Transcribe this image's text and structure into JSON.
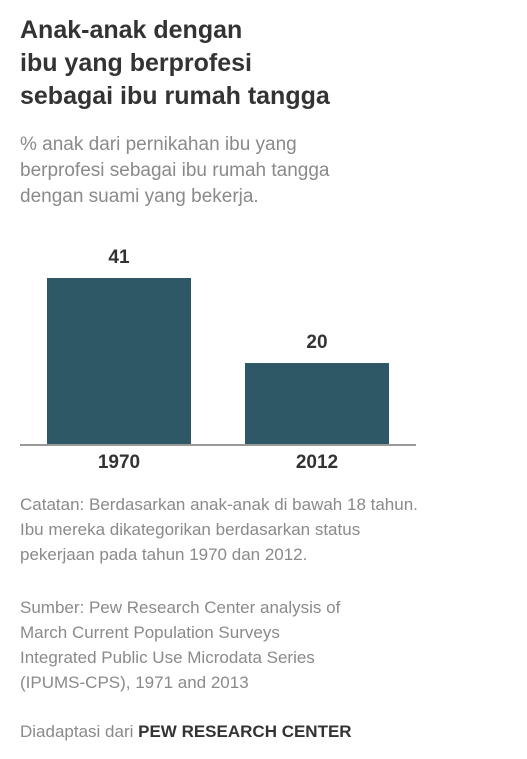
{
  "title": "Anak-anak dengan\nibu yang berprofesi\nsebagai ibu rumah tangga",
  "subtitle": "% anak dari pernikahan ibu yang\nberprofesi sebagai ibu rumah tangga\ndengan suami yang bekerja.",
  "chart_data": {
    "type": "bar",
    "categories": [
      "1970",
      "2012"
    ],
    "values": [
      41,
      20
    ],
    "data_labels": [
      "41",
      "20"
    ],
    "ylim": [
      0,
      41
    ],
    "grid": false,
    "bar_color": "#2f5866",
    "axis_color": "#999999"
  },
  "notes": {
    "catatan": "Catatan: Berdasarkan anak-anak di bawah 18 tahun.\nIbu mereka dikategorikan berdasarkan status\npekerjaan pada tahun 1970 dan 2012.",
    "sumber": "Sumber: Pew Research Center analysis of\nMarch Current Population Surveys\nIntegrated Public Use Microdata Series\n(IPUMS-CPS), 1971 and 2013"
  },
  "credit": {
    "prefix": "Diadaptasi dari ",
    "brand": "PEW RESEARCH CENTER"
  }
}
